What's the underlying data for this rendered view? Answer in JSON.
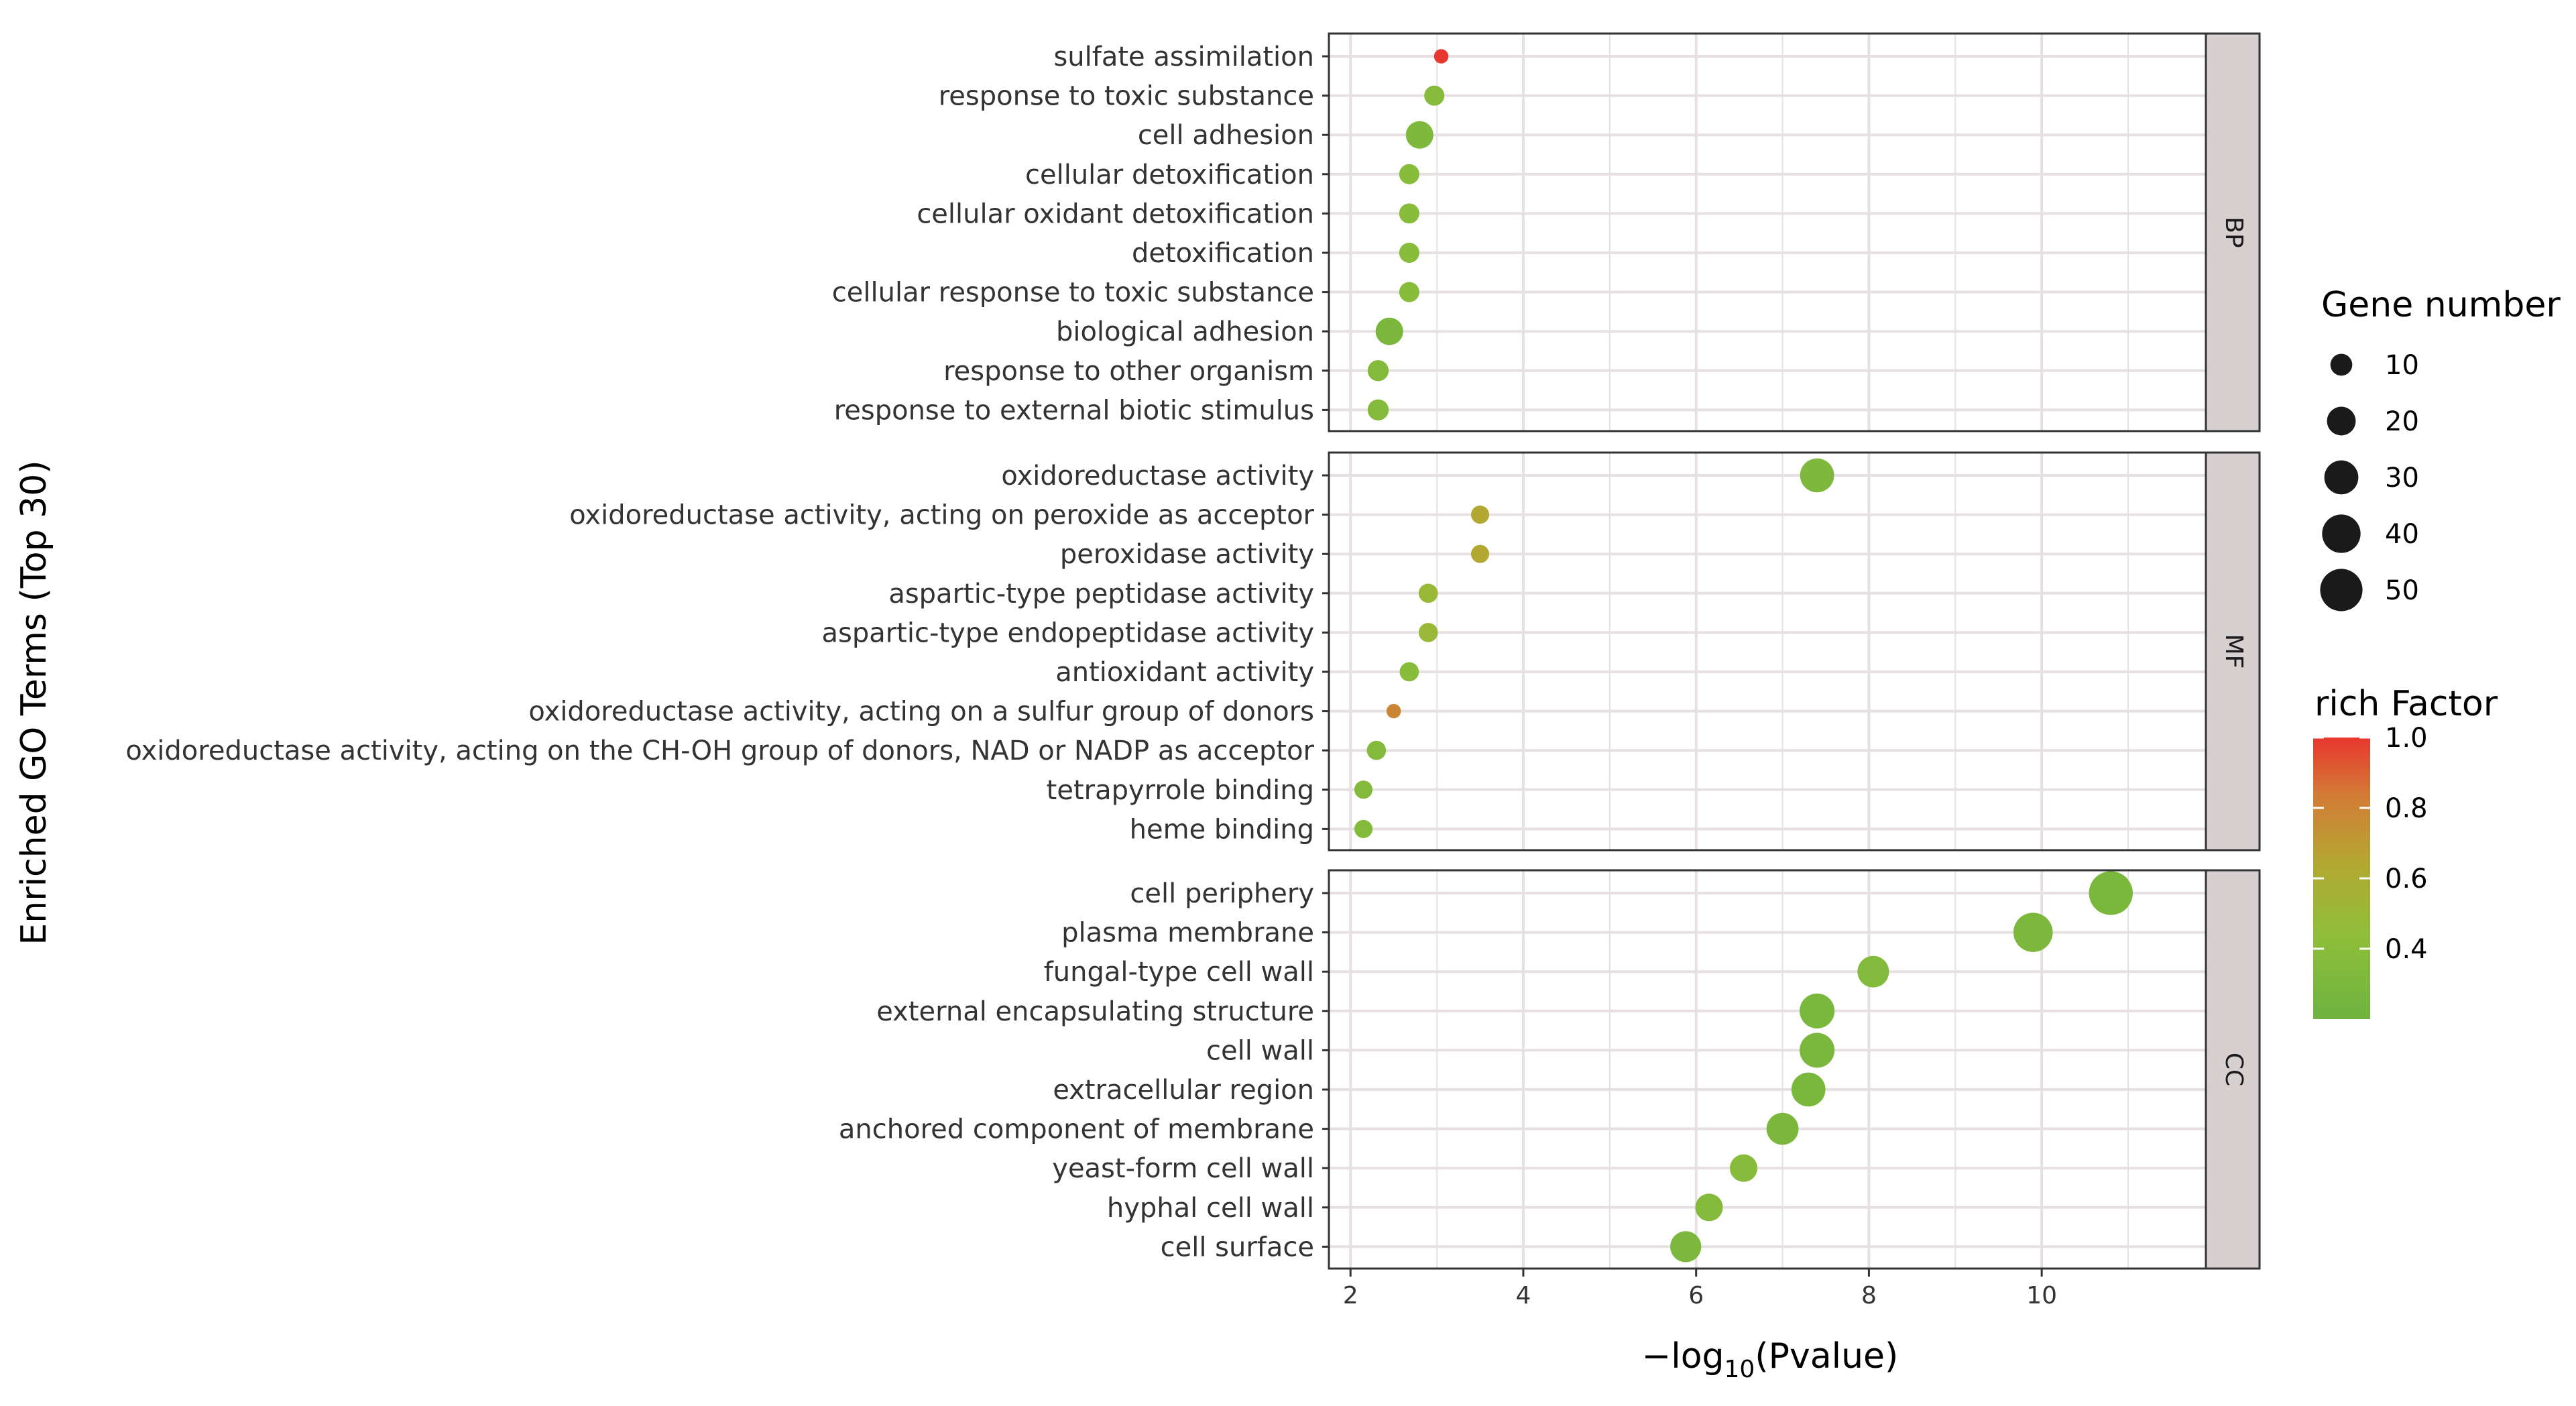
{
  "chart_data": {
    "type": "scatter",
    "xlabel": "Pvalue",
    "xlabel_prefix": "−log",
    "xlabel_subscript": "10",
    "ylabel": "Enriched GO Terms (Top 30)",
    "xlim": [
      1.75,
      11.9
    ],
    "x_ticks": [
      2,
      4,
      6,
      8,
      10
    ],
    "grid": true,
    "legend_position": "right",
    "size_legend": {
      "title": "Gene number",
      "values": [
        10,
        20,
        30,
        40,
        50
      ],
      "labels": [
        "10",
        "20",
        "30",
        "40",
        "50"
      ]
    },
    "color_legend": {
      "title": "rich Factor",
      "ticks": [
        1.0,
        0.8,
        0.6,
        0.4
      ],
      "tick_labels": [
        "1.0",
        "0.8",
        "0.6",
        "0.4"
      ],
      "min": 0.2,
      "max": 1.0,
      "low_color": "#6db33f",
      "mid_color": "#b3a832",
      "high_color": "#e8372f"
    },
    "panels": [
      {
        "label": "BP",
        "terms": [
          {
            "name": "sulfate assimilation",
            "x": 3.05,
            "genes": 3,
            "rich": 1.0
          },
          {
            "name": "response to toxic substance",
            "x": 2.97,
            "genes": 8,
            "rich": 0.35
          },
          {
            "name": "cell adhesion",
            "x": 2.8,
            "genes": 18,
            "rich": 0.3
          },
          {
            "name": "cellular detoxification",
            "x": 2.68,
            "genes": 8,
            "rich": 0.36
          },
          {
            "name": "cellular oxidant detoxification",
            "x": 2.68,
            "genes": 8,
            "rich": 0.36
          },
          {
            "name": "detoxification",
            "x": 2.68,
            "genes": 8,
            "rich": 0.36
          },
          {
            "name": "cellular response to toxic substance",
            "x": 2.68,
            "genes": 8,
            "rich": 0.36
          },
          {
            "name": "biological adhesion",
            "x": 2.45,
            "genes": 18,
            "rich": 0.28
          },
          {
            "name": "response to other organism",
            "x": 2.32,
            "genes": 9,
            "rich": 0.33
          },
          {
            "name": "response to external biotic stimulus",
            "x": 2.32,
            "genes": 9,
            "rich": 0.33
          }
        ]
      },
      {
        "label": "MF",
        "terms": [
          {
            "name": "oxidoreductase activity",
            "x": 7.4,
            "genes": 30,
            "rich": 0.3
          },
          {
            "name": "oxidoreductase activity, acting on peroxide as acceptor",
            "x": 3.5,
            "genes": 6,
            "rich": 0.6
          },
          {
            "name": "peroxidase activity",
            "x": 3.5,
            "genes": 6,
            "rich": 0.6
          },
          {
            "name": "aspartic-type peptidase activity",
            "x": 2.9,
            "genes": 7,
            "rich": 0.45
          },
          {
            "name": "aspartic-type endopeptidase activity",
            "x": 2.9,
            "genes": 7,
            "rich": 0.45
          },
          {
            "name": "antioxidant activity",
            "x": 2.68,
            "genes": 7,
            "rich": 0.36
          },
          {
            "name": "oxidoreductase activity, acting on a sulfur group of donors",
            "x": 2.5,
            "genes": 3,
            "rich": 0.75
          },
          {
            "name": "oxidoreductase activity, acting on the CH-OH group of donors, NAD or NADP as acceptor",
            "x": 2.3,
            "genes": 7,
            "rich": 0.33
          },
          {
            "name": "tetrapyrrole binding",
            "x": 2.15,
            "genes": 6,
            "rich": 0.33
          },
          {
            "name": "heme binding",
            "x": 2.15,
            "genes": 6,
            "rich": 0.33
          }
        ]
      },
      {
        "label": "CC",
        "terms": [
          {
            "name": "cell periphery",
            "x": 10.8,
            "genes": 54,
            "rich": 0.27
          },
          {
            "name": "plasma membrane",
            "x": 9.9,
            "genes": 42,
            "rich": 0.29
          },
          {
            "name": "fungal-type cell wall",
            "x": 8.05,
            "genes": 25,
            "rich": 0.32
          },
          {
            "name": "external encapsulating structure",
            "x": 7.4,
            "genes": 32,
            "rich": 0.27
          },
          {
            "name": "cell wall",
            "x": 7.4,
            "genes": 32,
            "rich": 0.27
          },
          {
            "name": "extracellular region",
            "x": 7.3,
            "genes": 30,
            "rich": 0.27
          },
          {
            "name": "anchored component of membrane",
            "x": 7.0,
            "genes": 26,
            "rich": 0.28
          },
          {
            "name": "yeast-form cell wall",
            "x": 6.55,
            "genes": 18,
            "rich": 0.35
          },
          {
            "name": "hyphal cell wall",
            "x": 6.15,
            "genes": 18,
            "rich": 0.33
          },
          {
            "name": "cell surface",
            "x": 5.88,
            "genes": 24,
            "rich": 0.29
          }
        ]
      }
    ]
  }
}
